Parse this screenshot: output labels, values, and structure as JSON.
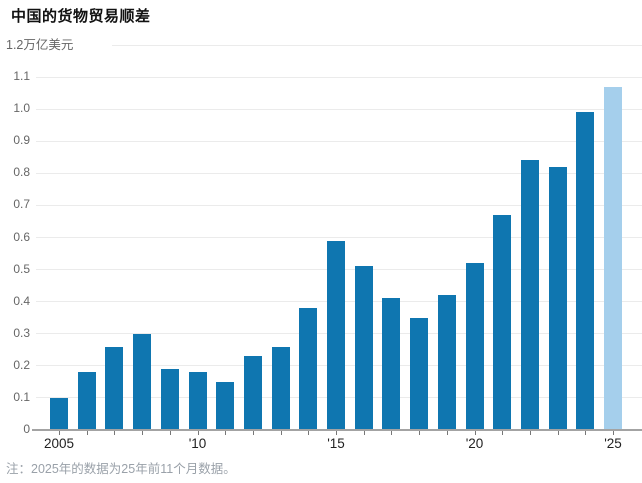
{
  "footnote": "注：2025年的数据为25年前11个月数据。",
  "colors": {
    "bar": "#0f76b0",
    "bar_highlight": "#a5cfec",
    "grid": "#ebebeb",
    "axis": "#a3a3a3",
    "tick_mark": "#777777",
    "y_label": "#666666",
    "x_label": "#222222",
    "title": "#111111",
    "note": "#9aa1a9",
    "background": "#ffffff"
  },
  "chart_data": {
    "type": "bar",
    "title": "中国的货物贸易顺差",
    "top_axis_label": "1.2万亿美元",
    "unit": "万亿美元",
    "categories": [
      "2005",
      "2006",
      "2007",
      "2008",
      "2009",
      "2010",
      "2011",
      "2012",
      "2013",
      "2014",
      "2015",
      "2016",
      "2017",
      "2018",
      "2019",
      "2020",
      "2021",
      "2022",
      "2023",
      "2024",
      "2025"
    ],
    "values": [
      0.1,
      0.18,
      0.26,
      0.3,
      0.19,
      0.18,
      0.15,
      0.23,
      0.26,
      0.38,
      0.59,
      0.51,
      0.41,
      0.35,
      0.42,
      0.52,
      0.67,
      0.84,
      0.82,
      0.99,
      1.07
    ],
    "highlight_index": 20,
    "ylim": [
      0,
      1.2
    ],
    "yticks": [
      {
        "value": 0,
        "label": "0"
      },
      {
        "value": 0.1,
        "label": "0.1"
      },
      {
        "value": 0.2,
        "label": "0.2"
      },
      {
        "value": 0.3,
        "label": "0.3"
      },
      {
        "value": 0.4,
        "label": "0.4"
      },
      {
        "value": 0.5,
        "label": "0.5"
      },
      {
        "value": 0.6,
        "label": "0.6"
      },
      {
        "value": 0.7,
        "label": "0.7"
      },
      {
        "value": 0.8,
        "label": "0.8"
      },
      {
        "value": 0.9,
        "label": "0.9"
      },
      {
        "value": 1.0,
        "label": "1.0"
      },
      {
        "value": 1.1,
        "label": "1.1"
      }
    ],
    "top_tick_value": 1.2,
    "xtick_labels": [
      {
        "index": 0,
        "label": "2005"
      },
      {
        "index": 5,
        "label": "'10"
      },
      {
        "index": 10,
        "label": "'15"
      },
      {
        "index": 15,
        "label": "'20"
      },
      {
        "index": 20,
        "label": "'25"
      }
    ],
    "grid": true,
    "legend": null
  }
}
